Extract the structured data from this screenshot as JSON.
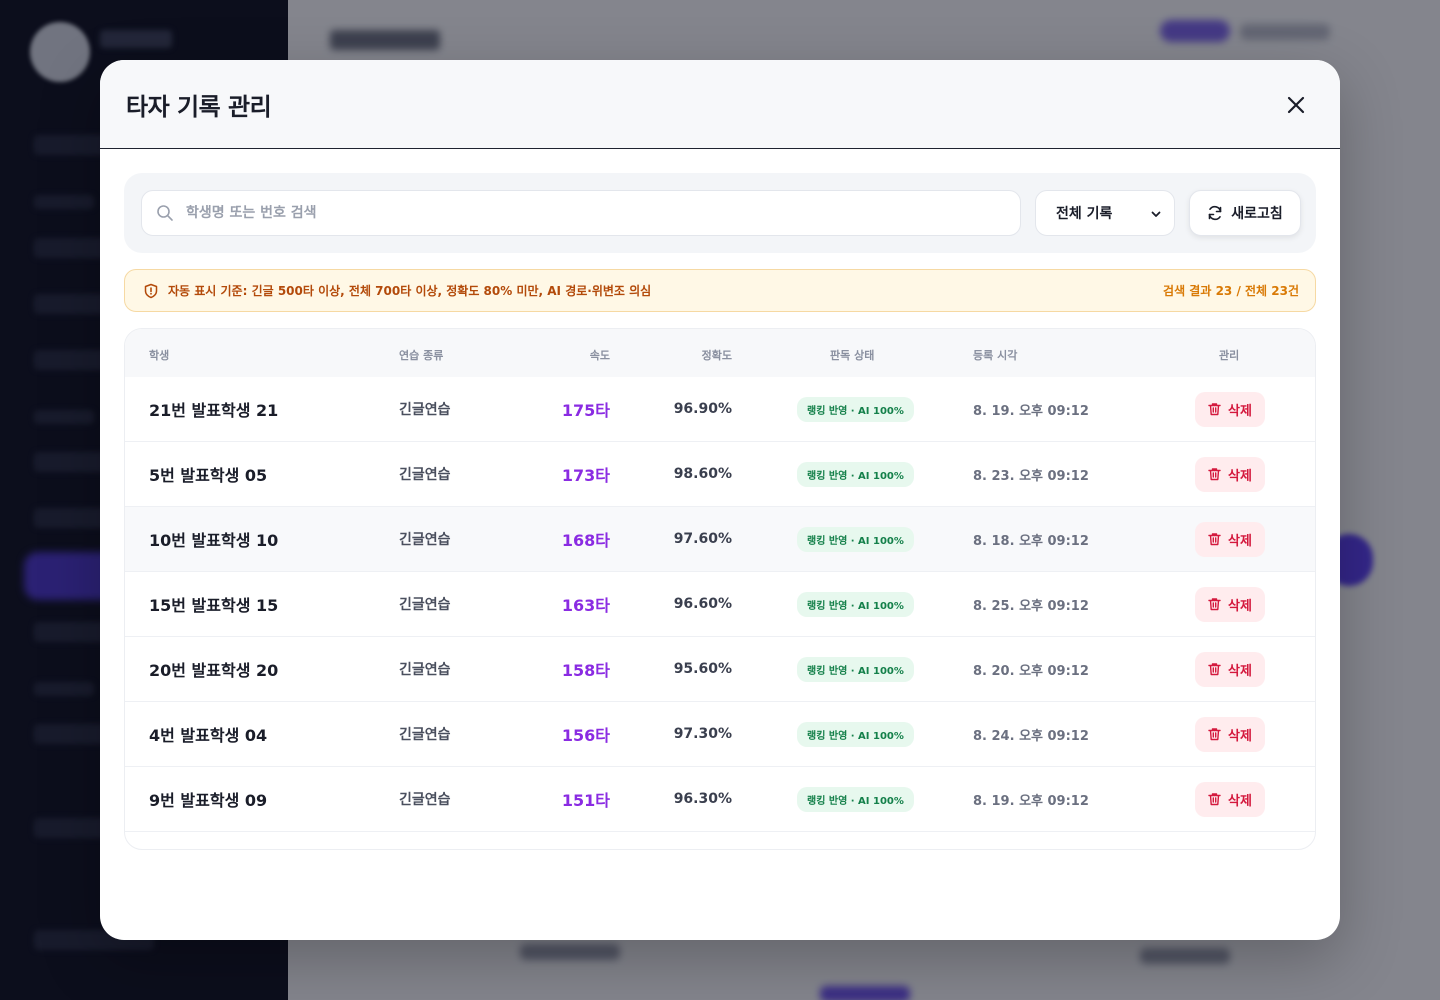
{
  "modal": {
    "title": "타자 기록 관리"
  },
  "toolbar": {
    "search_placeholder": "학생명 또는 번호 검색",
    "search_value": "",
    "filter_selected": "전체 기록",
    "refresh_label": "새로고침"
  },
  "notice": {
    "text": "자동 표시 기준: 긴글 500타 이상, 전체 700타 이상, 정확도 80% 미만, AI 경로·위변조 의심",
    "count": "검색 결과 23 / 전체 23건"
  },
  "table": {
    "headers": {
      "student": "학생",
      "type": "연습 종류",
      "speed": "속도",
      "accuracy": "정확도",
      "status": "판독 상태",
      "time": "등록 시각",
      "manage": "관리"
    },
    "delete_label": "삭제",
    "rows": [
      {
        "name": "21번 발표학생 21",
        "type": "긴글연습",
        "speed": "175타",
        "accuracy": "96.90%",
        "status": "랭킹 반영 · AI 100%",
        "time": "8. 19. 오후 09:12"
      },
      {
        "name": "5번 발표학생 05",
        "type": "긴글연습",
        "speed": "173타",
        "accuracy": "98.60%",
        "status": "랭킹 반영 · AI 100%",
        "time": "8. 23. 오후 09:12"
      },
      {
        "name": "10번 발표학생 10",
        "type": "긴글연습",
        "speed": "168타",
        "accuracy": "97.60%",
        "status": "랭킹 반영 · AI 100%",
        "time": "8. 18. 오후 09:12"
      },
      {
        "name": "15번 발표학생 15",
        "type": "긴글연습",
        "speed": "163타",
        "accuracy": "96.60%",
        "status": "랭킹 반영 · AI 100%",
        "time": "8. 25. 오후 09:12"
      },
      {
        "name": "20번 발표학생 20",
        "type": "긴글연습",
        "speed": "158타",
        "accuracy": "95.60%",
        "status": "랭킹 반영 · AI 100%",
        "time": "8. 20. 오후 09:12"
      },
      {
        "name": "4번 발표학생 04",
        "type": "긴글연습",
        "speed": "156타",
        "accuracy": "97.30%",
        "status": "랭킹 반영 · AI 100%",
        "time": "8. 24. 오후 09:12"
      },
      {
        "name": "9번 발표학생 09",
        "type": "긴글연습",
        "speed": "151타",
        "accuracy": "96.30%",
        "status": "랭킹 반영 · AI 100%",
        "time": "8. 19. 오후 09:12"
      }
    ]
  },
  "colors": {
    "accent": "#8a2be2",
    "danger": "#d4183d",
    "success": "#14804a",
    "warning": "#b34a0a"
  }
}
